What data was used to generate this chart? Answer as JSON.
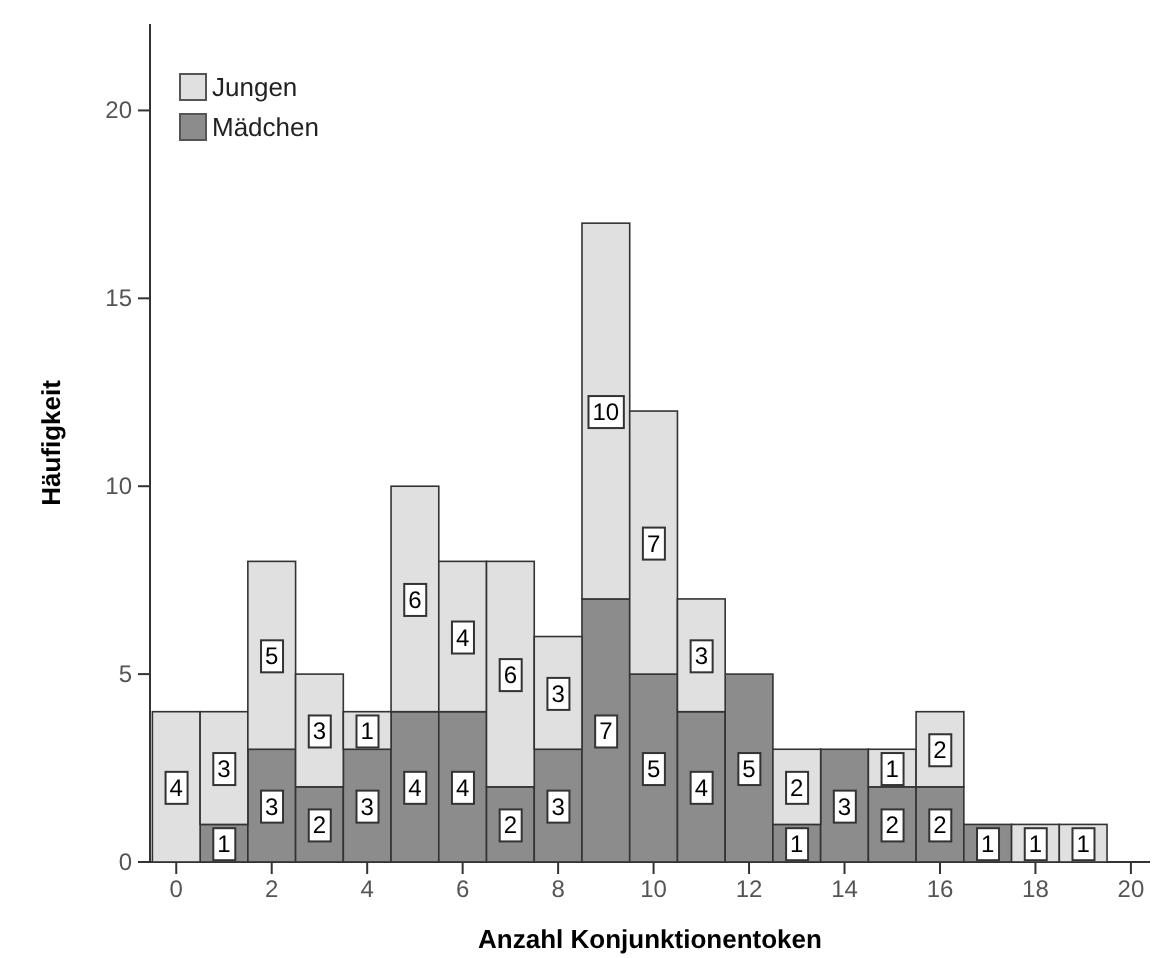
{
  "chart_data": {
    "type": "bar",
    "xlabel": "Anzahl Konjunktionentoken",
    "ylabel": "Häufigkeit",
    "stacked": true,
    "data_labels": true,
    "legend": "top left",
    "x": [
      0,
      1,
      2,
      3,
      4,
      5,
      6,
      7,
      8,
      9,
      10,
      11,
      12,
      13,
      14,
      15,
      16,
      17,
      18,
      19
    ],
    "series": [
      {
        "name": "Mädchen",
        "color": "#8c8c8c",
        "values": [
          null,
          1,
          3,
          2,
          3,
          4,
          4,
          2,
          3,
          7,
          5,
          4,
          5,
          1,
          3,
          2,
          2,
          1,
          null,
          null
        ]
      },
      {
        "name": "Jungen",
        "color": "#e0e0e0",
        "values": [
          4,
          3,
          5,
          3,
          1,
          6,
          4,
          6,
          3,
          10,
          7,
          3,
          null,
          2,
          null,
          1,
          2,
          null,
          1,
          1
        ]
      }
    ],
    "xlim": [
      -0.55,
      20.4
    ],
    "xticks": [
      0,
      2,
      4,
      6,
      8,
      10,
      12,
      14,
      16,
      18,
      20
    ],
    "ylim": [
      0,
      22.3
    ],
    "yticks": [
      0,
      5,
      10,
      15,
      20
    ]
  }
}
